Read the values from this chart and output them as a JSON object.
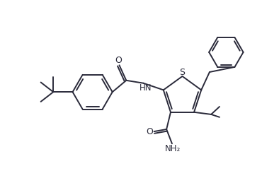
{
  "background_color": "#ffffff",
  "line_color": "#2a2a3a",
  "line_width": 1.4,
  "figure_width": 3.94,
  "figure_height": 2.76,
  "dpi": 100,
  "xlim": [
    0,
    10
  ],
  "ylim": [
    0,
    7
  ]
}
